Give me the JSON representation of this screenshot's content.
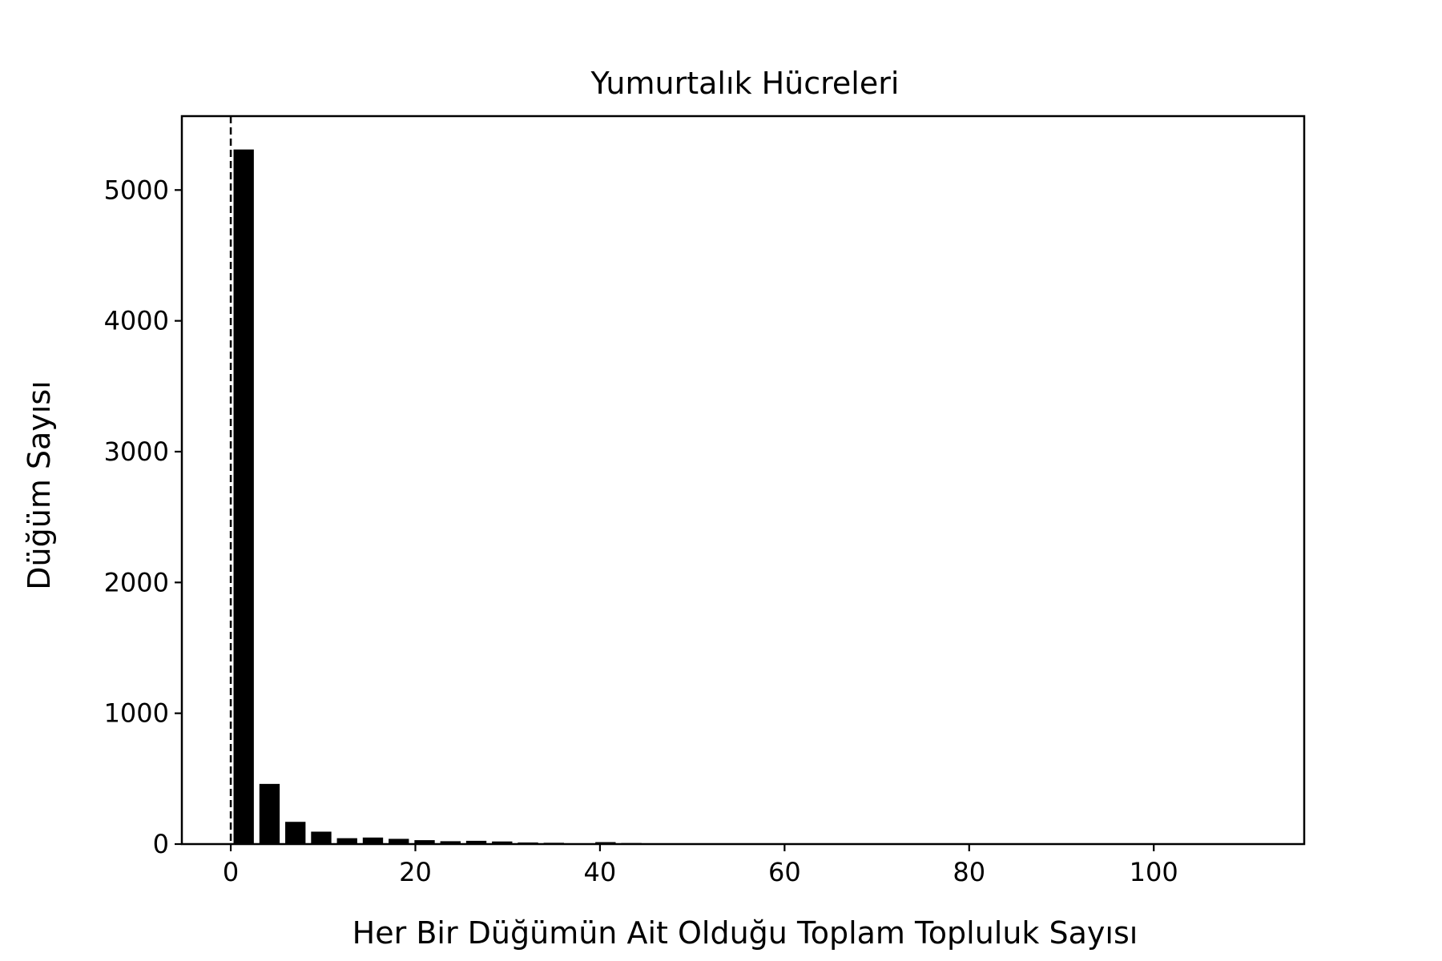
{
  "chart_data": {
    "type": "bar",
    "title": "Yumurtalık Hücreleri",
    "xlabel": "Her Bir Düğümün Ait Olduğu Toplam Topluluk Sayısı",
    "ylabel": "Düğüm Sayısı",
    "xlim": [
      -5.3,
      116.3
    ],
    "ylim": [
      0,
      5565
    ],
    "xticks": [
      0,
      20,
      40,
      60,
      80,
      100
    ],
    "yticks": [
      0,
      1000,
      2000,
      3000,
      4000,
      5000
    ],
    "reference_line_x": 0,
    "bar_width": 2.2,
    "x": [
      1.4,
      4.2,
      7.0,
      9.8,
      12.6,
      15.4,
      18.2,
      21.0,
      23.8,
      26.6,
      29.4,
      32.2,
      35.0,
      40.6,
      43.4
    ],
    "values": [
      5310,
      460,
      170,
      95,
      45,
      50,
      40,
      30,
      22,
      25,
      20,
      12,
      10,
      15,
      8
    ],
    "bar_color": "#000000",
    "grid": false,
    "legend": "none"
  }
}
